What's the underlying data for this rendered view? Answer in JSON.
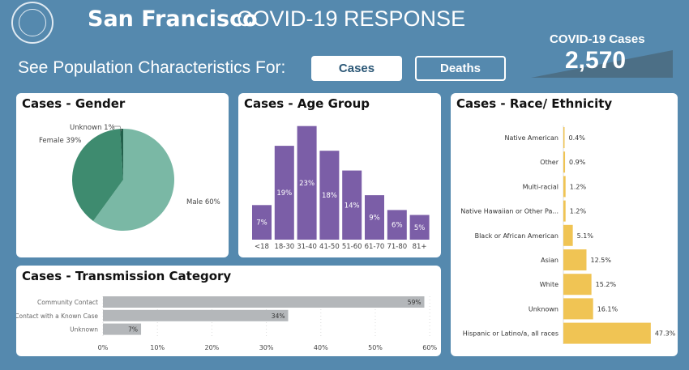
{
  "header": {
    "title_bold": "San Francisco",
    "title": "COVID-19 RESPONSE",
    "subtitle": "See Population Characteristics For:",
    "buttons": [
      {
        "label": "Cases"
      },
      {
        "label": "Deaths"
      }
    ],
    "kpi_label": "COVID-19 Cases",
    "kpi_value": "2,570"
  },
  "colors": {
    "background": "#5589ae",
    "male": "#7ab8a5",
    "female": "#3e8b6f",
    "unknown": "#22604b",
    "age": "#7b5ea7",
    "race": "#f0c454",
    "transmission": "#b4b7ba"
  },
  "chart_data": [
    {
      "type": "pie",
      "title": "Cases - Gender",
      "slices": [
        {
          "label": "Male 60%",
          "value": 60
        },
        {
          "label": "Female 39%",
          "value": 39
        },
        {
          "label": "Unknown 1%",
          "value": 1
        }
      ]
    },
    {
      "type": "bar",
      "title": "Cases - Age Group",
      "categories": [
        "<18",
        "18-30",
        "31-40",
        "41-50",
        "51-60",
        "61-70",
        "71-80",
        "81+"
      ],
      "values": [
        7,
        19,
        23,
        18,
        14,
        9,
        6,
        5
      ],
      "labels": [
        "7%",
        "19%",
        "23%",
        "18%",
        "14%",
        "9%",
        "6%",
        "5%"
      ]
    },
    {
      "type": "bar",
      "orientation": "horizontal",
      "title": "Cases - Race/ Ethnicity",
      "categories": [
        "Native American",
        "Other",
        "Multi-racial",
        "Native Hawaiian or Other Pa...",
        "Black or African American",
        "Asian",
        "White",
        "Unknown",
        "Hispanic or Latino/a, all races"
      ],
      "values": [
        0.4,
        0.9,
        1.2,
        1.2,
        5.1,
        12.5,
        15.2,
        16.1,
        47.3
      ],
      "labels": [
        "0.4%",
        "0.9%",
        "1.2%",
        "1.2%",
        "5.1%",
        "12.5%",
        "15.2%",
        "16.1%",
        "47.3%"
      ]
    },
    {
      "type": "bar",
      "orientation": "horizontal",
      "title": "Cases - Transmission Category",
      "categories": [
        "Community Contact",
        "Contact with a Known Case",
        "Unknown"
      ],
      "values": [
        59,
        34,
        7
      ],
      "labels": [
        "59%",
        "34%",
        "7%"
      ],
      "xlim": [
        0,
        60
      ],
      "xticks": [
        "0%",
        "10%",
        "20%",
        "30%",
        "40%",
        "50%",
        "60%"
      ]
    }
  ]
}
